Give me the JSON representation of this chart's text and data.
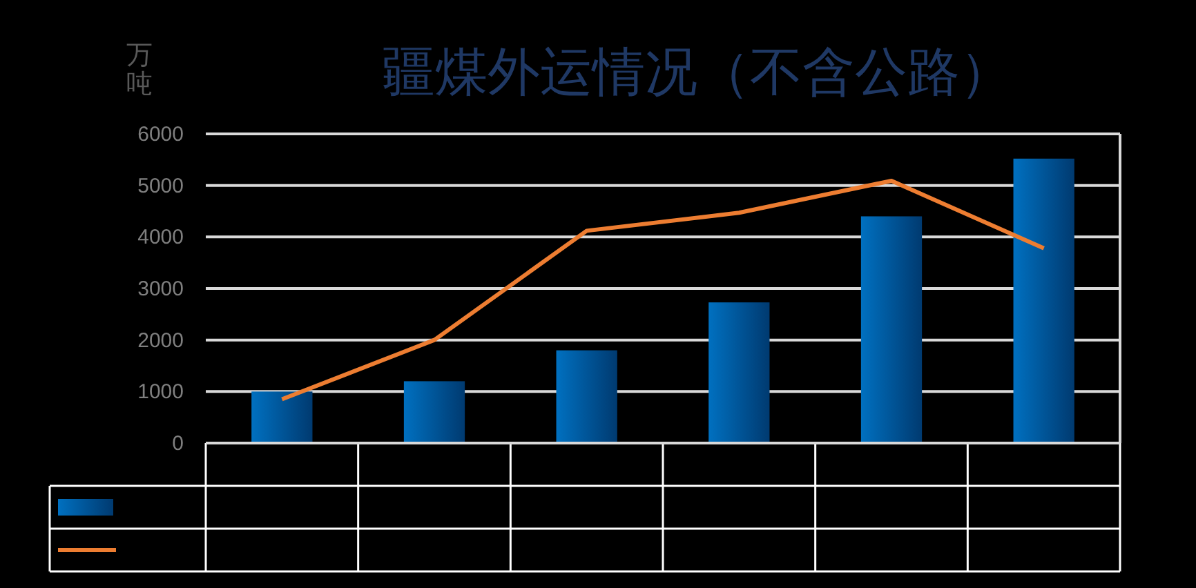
{
  "chart_data": {
    "type": "bar",
    "title": "疆煤外运情况（不含公路）",
    "ylabel": "万吨",
    "categories": [
      null,
      null,
      null,
      null,
      null,
      null
    ],
    "series": [
      {
        "color": "#0070c0",
        "values": [
          1000,
          1200,
          1800,
          2730,
          4400,
          5520
        ]
      },
      {
        "type": "line",
        "color": "#ed7d31",
        "values": [
          850,
          2000,
          4120,
          4470,
          5090,
          3780
        ]
      }
    ],
    "ylim": [
      0,
      6000
    ],
    "yticks": [
      0,
      1000,
      2000,
      3000,
      4000,
      5000,
      6000
    ],
    "grid": "y",
    "marker": "none",
    "line_style": "solid"
  }
}
